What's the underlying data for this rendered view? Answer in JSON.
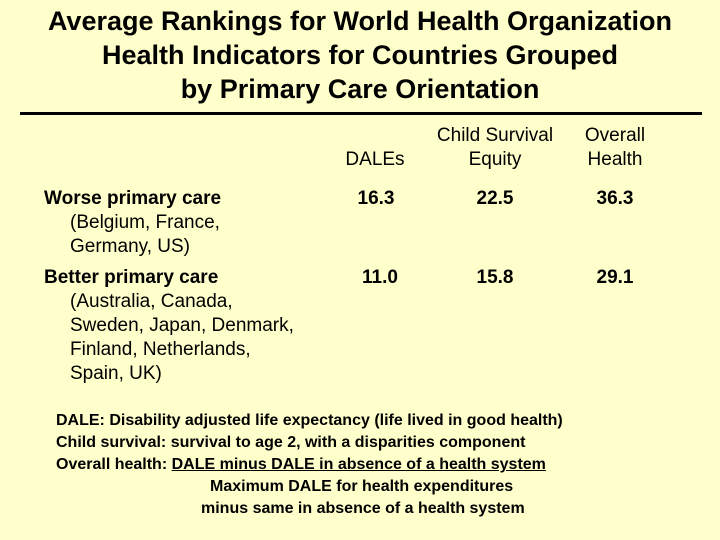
{
  "title": {
    "line1": "Average Rankings for World Health Organization",
    "line2": "Health Indicators for Countries Grouped",
    "line3": "by Primary Care Orientation"
  },
  "columns": {
    "dales": "DALEs",
    "child_line1": "Child Survival",
    "child_line2": "Equity",
    "overall_line1": "Overall",
    "overall_line2": "Health"
  },
  "rows": [
    {
      "label": "Worse primary care",
      "countries": [
        "(Belgium, France,",
        "Germany, US)"
      ],
      "dales": "16.3",
      "child": "22.5",
      "overall": "36.3"
    },
    {
      "label": "Better primary care",
      "countries": [
        "(Australia, Canada,",
        "Sweden, Japan, Denmark,",
        "Finland, Netherlands,",
        "Spain, UK)"
      ],
      "dales": "11.0",
      "child": "15.8",
      "overall": "29.1"
    }
  ],
  "notes": {
    "dale": "DALE:  Disability adjusted life expectancy (life lived in good health)",
    "child": "Child survival:  survival to age 2, with a disparities component",
    "overall_prefix": "Overall health:  ",
    "overall_numerator": "DALE minus DALE in absence of a health system",
    "overall_denom1": "Maximum DALE for health expenditures",
    "overall_denom2": "minus same in absence of a health system"
  }
}
